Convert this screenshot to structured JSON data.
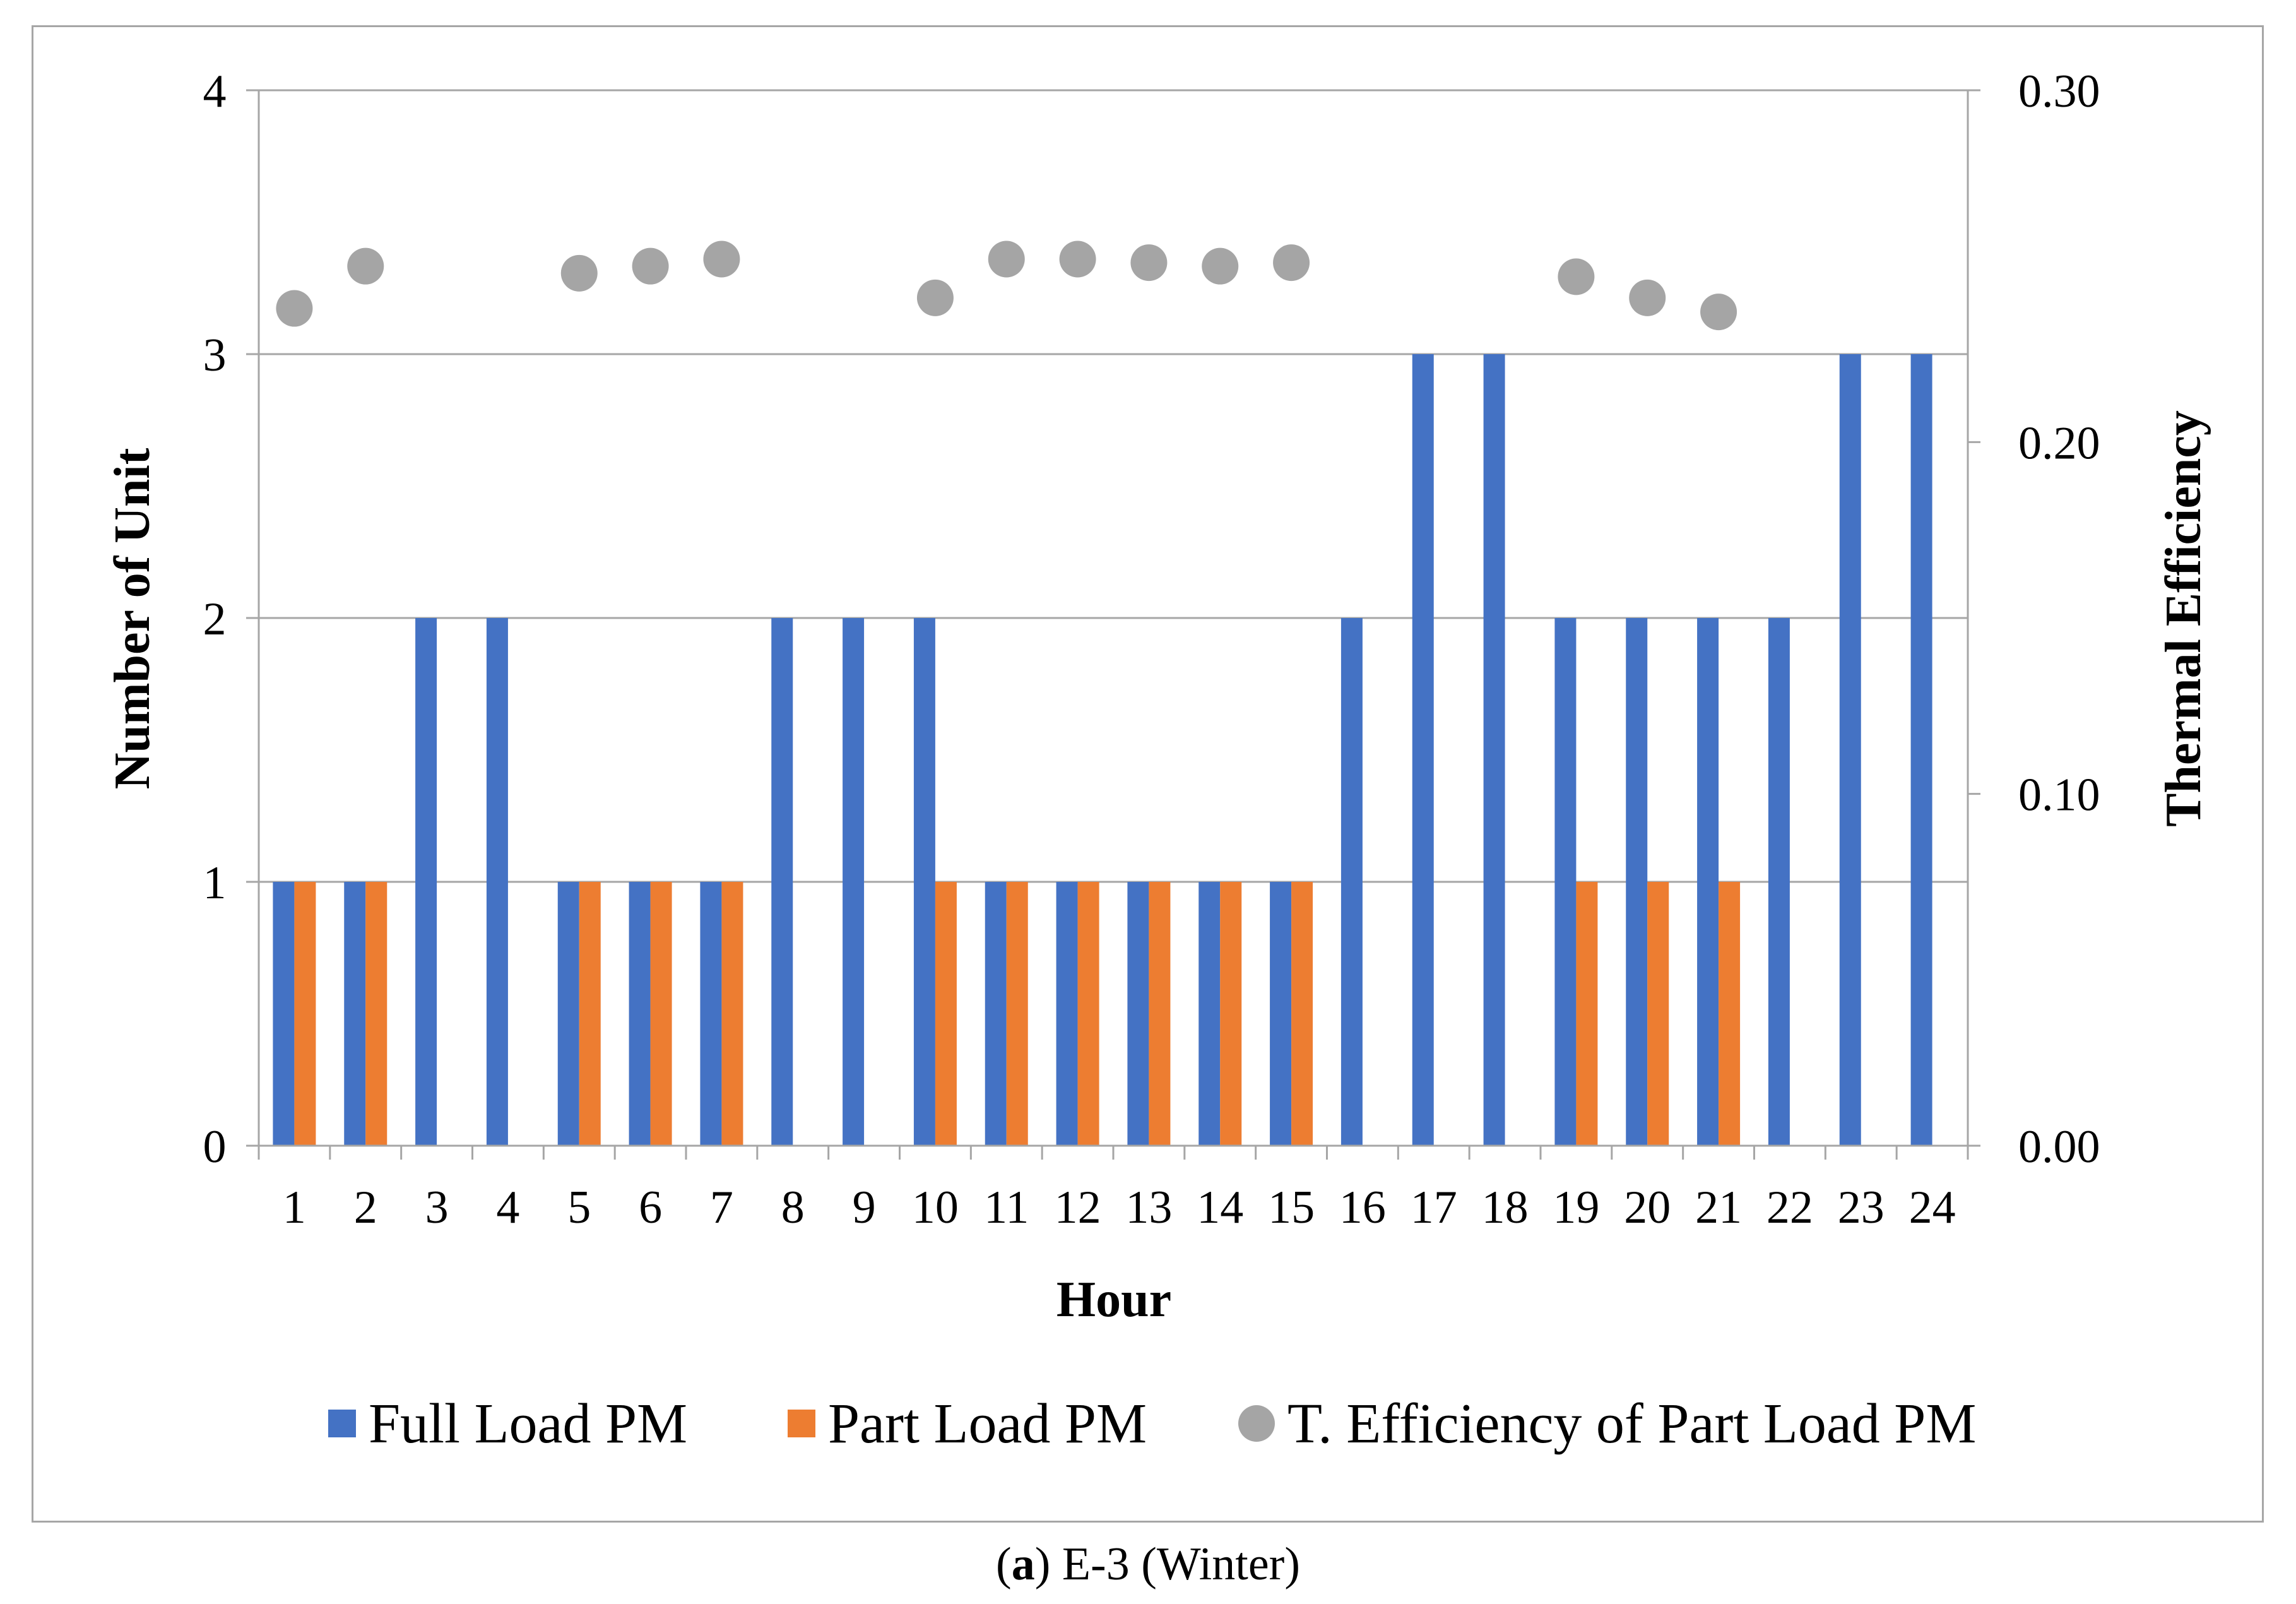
{
  "chart_data": {
    "type": "bar",
    "title": "",
    "xlabel": "Hour",
    "ylabel": "Number of Unit",
    "y2label": "Thermal Efficiency",
    "ylim": [
      0,
      4
    ],
    "y2lim": [
      0,
      0.3
    ],
    "yticks": [
      "0",
      "1",
      "2",
      "3",
      "4"
    ],
    "y2ticks": [
      "0.00",
      "0.10",
      "0.20",
      "0.30"
    ],
    "categories": [
      "1",
      "2",
      "3",
      "4",
      "5",
      "6",
      "7",
      "8",
      "9",
      "10",
      "11",
      "12",
      "13",
      "14",
      "15",
      "16",
      "17",
      "18",
      "19",
      "20",
      "21",
      "22",
      "23",
      "24"
    ],
    "series": [
      {
        "name": "Full Load PM",
        "kind": "bar",
        "axis": "left",
        "color": "#4472C4",
        "values": [
          1,
          1,
          2,
          2,
          1,
          1,
          1,
          2,
          2,
          2,
          1,
          1,
          1,
          1,
          1,
          2,
          3,
          3,
          2,
          2,
          2,
          2,
          3,
          3
        ]
      },
      {
        "name": "Part Load PM",
        "kind": "bar",
        "axis": "left",
        "color": "#ED7D31",
        "values": [
          1,
          1,
          0,
          0,
          1,
          1,
          1,
          0,
          0,
          1,
          1,
          1,
          1,
          1,
          1,
          0,
          0,
          0,
          1,
          1,
          1,
          0,
          0,
          0
        ]
      },
      {
        "name": "T. Efficiency of Part Load PM",
        "kind": "scatter",
        "axis": "right",
        "color": "#A5A5A5",
        "values": [
          0.238,
          0.25,
          null,
          null,
          0.248,
          0.25,
          0.252,
          null,
          null,
          0.241,
          0.252,
          0.252,
          0.251,
          0.25,
          0.251,
          null,
          null,
          null,
          0.247,
          0.241,
          0.237,
          null,
          null,
          null
        ]
      }
    ],
    "grid": true,
    "legend": "bottom"
  },
  "caption": {
    "label": "a",
    "text": "E-3 (Winter)"
  },
  "colors": {
    "gridline": "#A6A6A6",
    "frame": "#A6A6A6"
  }
}
